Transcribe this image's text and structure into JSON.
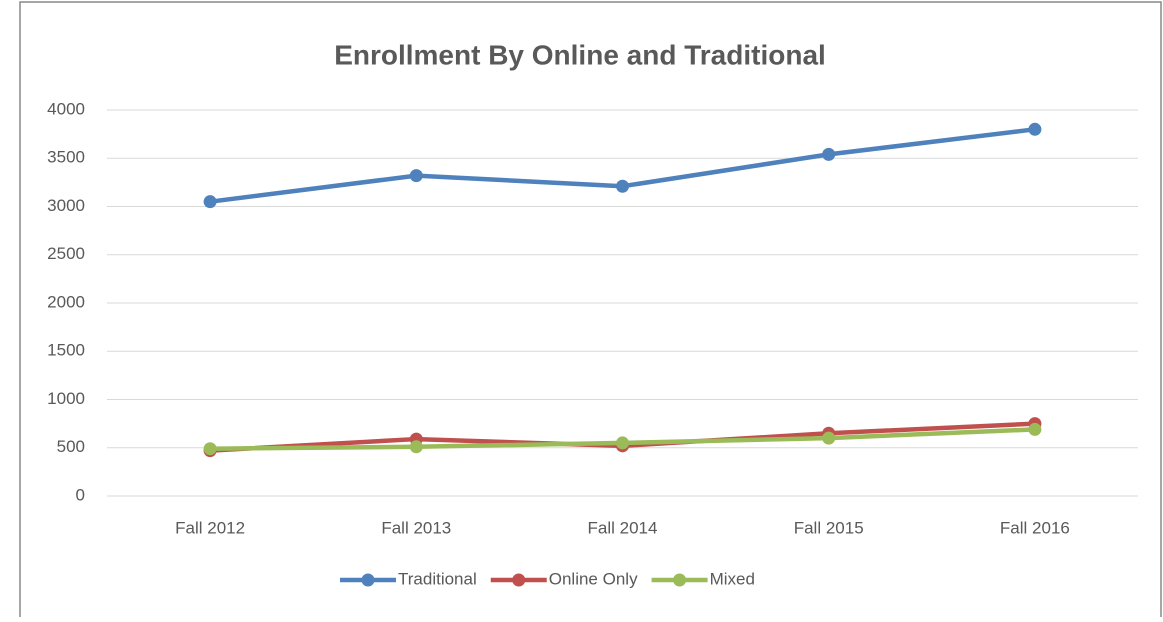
{
  "chart_data": {
    "type": "line",
    "title": "Enrollment By Online and Traditional",
    "categories": [
      "Fall 2012",
      "Fall 2013",
      "Fall 2014",
      "Fall 2015",
      "Fall 2016"
    ],
    "series": [
      {
        "name": "Traditional",
        "color": "#4f81bd",
        "values": [
          3050,
          3320,
          3210,
          3540,
          3800
        ]
      },
      {
        "name": "Online Only",
        "color": "#c0504d",
        "values": [
          470,
          590,
          520,
          650,
          750
        ]
      },
      {
        "name": "Mixed",
        "color": "#9bbb59",
        "values": [
          490,
          510,
          550,
          600,
          690
        ]
      }
    ],
    "ylim": [
      0,
      4000
    ],
    "yticks": [
      0,
      500,
      1000,
      1500,
      2000,
      2500,
      3000,
      3500,
      4000
    ],
    "grid": true,
    "legend": "bottom"
  }
}
